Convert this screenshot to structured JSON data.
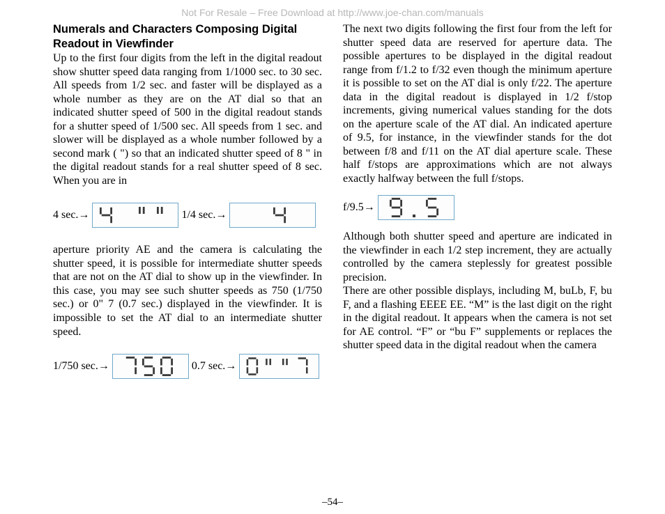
{
  "watermark": "Not For Resale – Free Download at http://www.joe-chan.com/manuals",
  "page_number": "–54–",
  "left": {
    "heading": "Numerals and Characters Composing Digital Readout in Viewfinder",
    "p1": "Up to the first four digits from the left in the digital readout show shutter speed data ranging from 1/1000 sec. to 30 sec. All speeds from 1/2 sec. and faster will be displayed as a whole number as they are on the AT dial so that an indicated shutter speed of 500 in the digital readout stands for a shutter speed of 1/500 sec. All speeds from 1 sec. and slower will be displayed as a whole number followed by a second mark ( \") so that an indicated shutter speed of 8 \" in the digital readout stands for a real shutter speed of 8 sec. When you are in",
    "ex1_label_a": "4 sec.→",
    "ex1_lcd_a": "4sec",
    "ex1_label_b": "1/4 sec.→",
    "ex1_lcd_b": "4",
    "p2": "aperture priority AE and the camera is calculating the shutter speed, it is possible for intermediate shutter speeds that are not on the AT dial to show up in the viewfinder. In this case, you may see such shutter speeds as 750 (1/750 sec.) or 0\" 7 (0.7 sec.) displayed in the viewfinder. It is impossible to set the AT dial to an intermediate shutter speed.",
    "ex2_label_a": "1/750 sec.→",
    "ex2_lcd_a": "750",
    "ex2_label_b": "0.7 sec.→",
    "ex2_lcd_b": "0sec7"
  },
  "right": {
    "p1": "The next two digits following the first four from the left for shutter speed data are reserved for aperture data. The possible apertures to be displayed in the digital readout range from f/1.2 to f/32 even though the minimum aperture it is possible to set on the AT dial is only f/22. The aperture data in the digital readout is displayed in 1/2 f/stop increments, giving numerical values standing for the dots on the aperture scale of the AT dial. An indicated aperture of 9.5, for instance, in the viewfinder stands for the dot between f/8 and f/11 on the AT dial aperture scale. These half f/stops are approximations which are not always exactly halfway between the full f/stops.",
    "ex3_label": "f/9.5→",
    "ex3_lcd": "9.5",
    "p2": "Although both shutter speed and aperture are indicated in the viewfinder in each 1/2 step increment, they are actually controlled by the camera steplessly for greatest possible precision.",
    "p3": "There are other possible displays, including M, buLb, F, bu F, and a flashing EEEE EE. “M” is the last digit on the right in the digital readout. It appears when the camera is not set for AE control. “F” or “bu F” supplements or replaces the shutter speed data in the digital readout when the camera"
  },
  "style": {
    "lcd_border_color": "#6fa8c9",
    "lcd_digit_color": "#3a3a3a",
    "seg_width": 2.8
  }
}
